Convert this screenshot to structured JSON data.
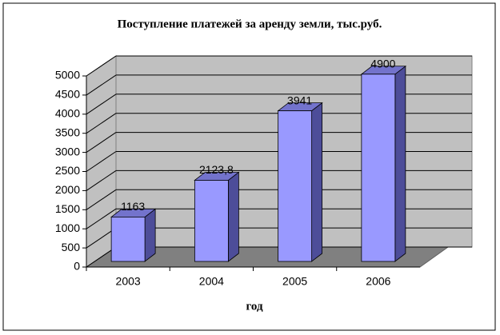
{
  "chart_data": {
    "type": "bar3d",
    "title": "Поступление платежей за аренду земли, тыс.руб.",
    "x_label": "год",
    "categories": [
      "2003",
      "2004",
      "2005",
      "2006"
    ],
    "values": [
      1163,
      2123.8,
      3941,
      4900
    ],
    "value_labels": [
      "1163",
      "2123,8",
      "3941",
      "4900"
    ],
    "color": "#9999ff",
    "ylim": [
      0,
      5000
    ],
    "yticks": [
      0,
      500,
      1000,
      1500,
      2000,
      2500,
      3000,
      3500,
      4000,
      4500,
      5000
    ],
    "grid": true
  }
}
